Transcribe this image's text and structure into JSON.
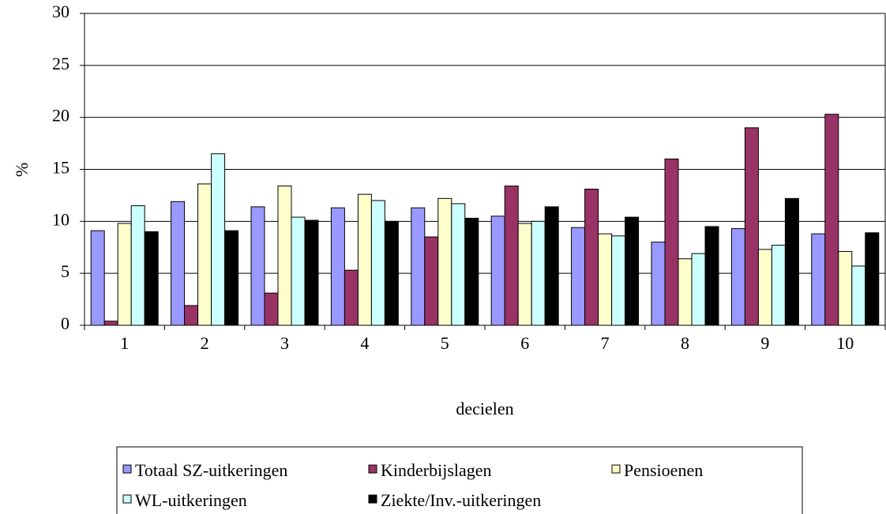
{
  "chart_data": {
    "type": "bar",
    "x_label": "decielen",
    "y_label": "%",
    "categories": [
      "1",
      "2",
      "3",
      "4",
      "5",
      "6",
      "7",
      "8",
      "9",
      "10"
    ],
    "series": [
      {
        "name": "Totaal SZ-uitkeringen",
        "color": "#9999ff",
        "values": [
          9.1,
          11.9,
          11.4,
          11.3,
          11.3,
          10.5,
          9.4,
          8.0,
          9.3,
          8.8
        ]
      },
      {
        "name": "Kinderbijslagen",
        "color": "#993366",
        "values": [
          0.4,
          1.9,
          3.1,
          5.3,
          8.5,
          13.4,
          13.1,
          16.0,
          19.0,
          20.3
        ]
      },
      {
        "name": "Pensioenen",
        "color": "#ffffcc",
        "values": [
          9.8,
          13.6,
          13.4,
          12.6,
          12.2,
          9.8,
          8.8,
          6.4,
          7.3,
          7.1
        ]
      },
      {
        "name": "WL-uitkeringen",
        "color": "#ccffff",
        "values": [
          11.5,
          16.5,
          10.4,
          12.0,
          11.7,
          10.0,
          8.6,
          6.9,
          7.7,
          5.7
        ]
      },
      {
        "name": "Ziekte/Inv.-uitkeringen",
        "color": "#000000",
        "values": [
          9.0,
          9.1,
          10.1,
          10.0,
          10.3,
          11.4,
          10.4,
          9.5,
          12.2,
          8.9
        ]
      }
    ],
    "ylim": [
      0,
      30
    ],
    "yticks": [
      0,
      5,
      10,
      15,
      20,
      25,
      30
    ],
    "grid": true,
    "legend": "bottom"
  }
}
